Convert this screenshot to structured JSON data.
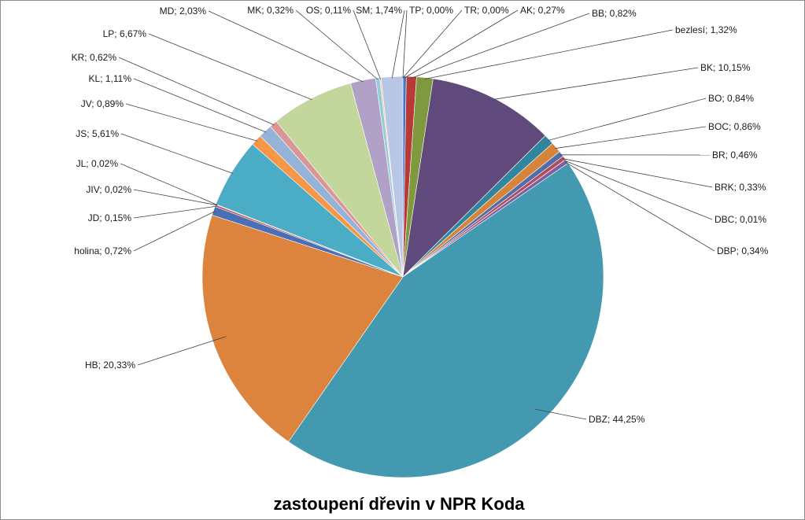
{
  "chart_data": {
    "type": "pie",
    "title": "zastoupení dřevin v NPR Koda",
    "legend": "none",
    "start_angle_deg": 0,
    "direction": "clockwise",
    "slices": [
      {
        "label": "AK; 0,27%",
        "name": "AK",
        "value": 0.27,
        "color": "#4472c4"
      },
      {
        "label": "BB; 0,82%",
        "name": "BB",
        "value": 0.82,
        "color": "#b83a36"
      },
      {
        "label": "bezlesí; 1,32%",
        "name": "bezlesí",
        "value": 1.32,
        "color": "#7f9a3e"
      },
      {
        "label": "BK; 10,15%",
        "name": "BK",
        "value": 10.15,
        "color": "#604a7b"
      },
      {
        "label": "BO; 0,84%",
        "name": "BO",
        "value": 0.84,
        "color": "#31859c"
      },
      {
        "label": "BOC; 0,86%",
        "name": "BOC",
        "value": 0.86,
        "color": "#d7843b"
      },
      {
        "label": "BR; 0,46%",
        "name": "BR",
        "value": 0.46,
        "color": "#4f6eab"
      },
      {
        "label": "BRK; 0,33%",
        "name": "BRK",
        "value": 0.33,
        "color": "#b04c5c"
      },
      {
        "label": "DBC; 0,01%",
        "name": "DBC",
        "value": 0.01,
        "color": "#93b351"
      },
      {
        "label": "DBP; 0,34%",
        "name": "DBP",
        "value": 0.34,
        "color": "#7e5e9c"
      },
      {
        "label": "DBZ; 44,25%",
        "name": "DBZ",
        "value": 44.25,
        "color": "#4299b0"
      },
      {
        "label": "HB; 20,33%",
        "name": "HB",
        "value": 20.33,
        "color": "#dc843d"
      },
      {
        "label": "holina; 0,72%",
        "name": "holina",
        "value": 0.72,
        "color": "#4a6fb5"
      },
      {
        "label": "JD; 0,15%",
        "name": "JD",
        "value": 0.15,
        "color": "#c0504d"
      },
      {
        "label": "JIV; 0,02%",
        "name": "JIV",
        "value": 0.02,
        "color": "#9bbb59"
      },
      {
        "label": "JL; 0,02%",
        "name": "JL",
        "value": 0.02,
        "color": "#8064a2"
      },
      {
        "label": "JS; 5,61%",
        "name": "JS",
        "value": 5.61,
        "color": "#4bacc6"
      },
      {
        "label": "JV; 0,89%",
        "name": "JV",
        "value": 0.89,
        "color": "#f79646"
      },
      {
        "label": "KL; 1,11%",
        "name": "KL",
        "value": 1.11,
        "color": "#95b3d7"
      },
      {
        "label": "KR; 0,62%",
        "name": "KR",
        "value": 0.62,
        "color": "#d99694"
      },
      {
        "label": "LP; 6,67%",
        "name": "LP",
        "value": 6.67,
        "color": "#c3d69b"
      },
      {
        "label": "MD; 2,03%",
        "name": "MD",
        "value": 2.03,
        "color": "#b2a1c7"
      },
      {
        "label": "MK; 0,32%",
        "name": "MK",
        "value": 0.32,
        "color": "#93cddd"
      },
      {
        "label": "OS; 0,11%",
        "name": "OS",
        "value": 0.11,
        "color": "#fac08f"
      },
      {
        "label": "SM; 1,74%",
        "name": "SM",
        "value": 1.74,
        "color": "#b9c7e6"
      },
      {
        "label": "TP; 0,00%",
        "name": "TP",
        "value": 0.0,
        "color": "#e6b9b8"
      },
      {
        "label": "TR; 0,00%",
        "name": "TR",
        "value": 0.0,
        "color": "#d7e4bd"
      }
    ]
  }
}
